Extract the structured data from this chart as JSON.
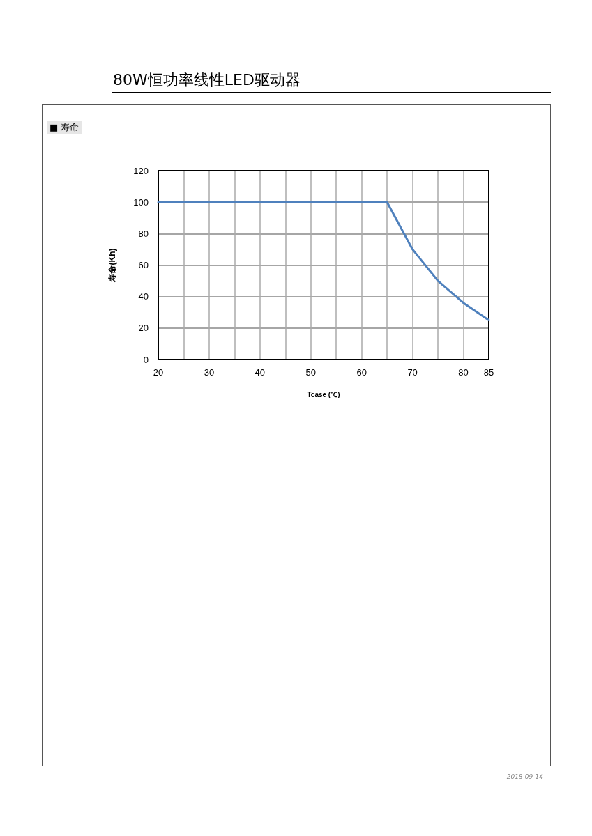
{
  "chart_data": {
    "type": "line",
    "title": "80W恒功率线性LED驱动器",
    "subtitle": "■ 寿命",
    "xlabel": "Tcase (℃)",
    "ylabel": "寿命(Kh)",
    "x": [
      20,
      65,
      70,
      75,
      80,
      85
    ],
    "series": [
      {
        "color": "#4f81bd",
        "values": [
          100,
          100,
          70,
          50,
          36,
          25
        ]
      }
    ],
    "xlim": [
      20,
      85
    ],
    "xticks": [
      20,
      {
        "value": 25,
        "label": null
      },
      30,
      {
        "value": 35,
        "label": null
      },
      40,
      {
        "value": 45,
        "label": null
      },
      50,
      {
        "value": 55,
        "label": null
      },
      60,
      {
        "value": 65,
        "label": null
      },
      70,
      {
        "value": 75,
        "label": null
      },
      80,
      85
    ],
    "ylim": [
      0,
      120
    ],
    "yticks": [
      0,
      20,
      40,
      60,
      80,
      100,
      120
    ],
    "grid": true,
    "marker": "none",
    "line_style": "solid",
    "annotations": [
      "2018-09-14"
    ]
  }
}
